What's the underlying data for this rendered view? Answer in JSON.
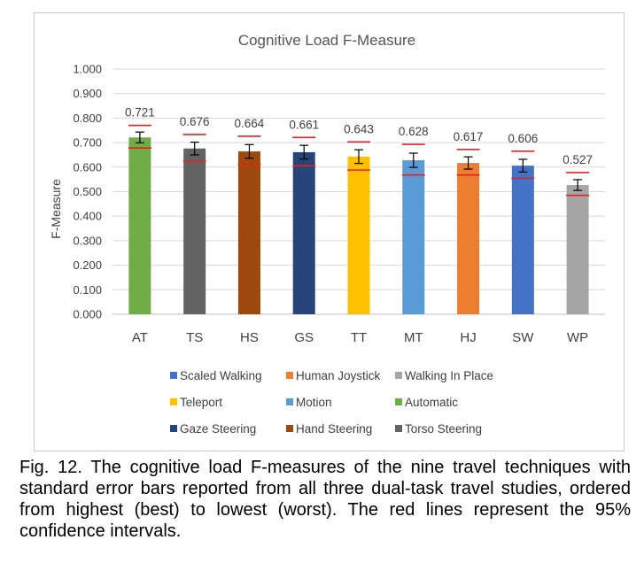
{
  "chart_data": {
    "type": "bar",
    "title": "Cognitive Load F-Measure",
    "ylabel": "F-Measure",
    "xlabel": "",
    "ylim": [
      0,
      1.0
    ],
    "yticks": [
      "0.000",
      "0.100",
      "0.200",
      "0.300",
      "0.400",
      "0.500",
      "0.600",
      "0.700",
      "0.800",
      "0.900",
      "1.000"
    ],
    "grid": true,
    "categories": [
      "AT",
      "TS",
      "HS",
      "GS",
      "TT",
      "MT",
      "HJ",
      "SW",
      "WP"
    ],
    "values": [
      0.721,
      0.676,
      0.664,
      0.661,
      0.643,
      0.628,
      0.617,
      0.606,
      0.527
    ],
    "value_labels": [
      "0.721",
      "0.676",
      "0.664",
      "0.661",
      "0.643",
      "0.628",
      "0.617",
      "0.606",
      "0.527"
    ],
    "error": [
      0.022,
      0.026,
      0.028,
      0.028,
      0.028,
      0.029,
      0.025,
      0.026,
      0.022
    ],
    "ci_low": [
      0.678,
      0.625,
      0.61,
      0.605,
      0.588,
      0.568,
      0.568,
      0.555,
      0.485
    ],
    "ci_high": [
      0.77,
      0.733,
      0.726,
      0.721,
      0.703,
      0.693,
      0.672,
      0.665,
      0.578
    ],
    "ci_color": "#e8211f",
    "colors": [
      "#70ad47",
      "#636363",
      "#9e480e",
      "#264478",
      "#ffc000",
      "#5b9bd5",
      "#ed7d31",
      "#4472c4",
      "#a5a5a5"
    ],
    "legend_position": "bottom",
    "legend": [
      {
        "name": "Scaled Walking",
        "color": "#4472c4"
      },
      {
        "name": "Human Joystick",
        "color": "#ed7d31"
      },
      {
        "name": "Walking In Place",
        "color": "#a5a5a5"
      },
      {
        "name": "Teleport",
        "color": "#ffc000"
      },
      {
        "name": "Motion",
        "color": "#5b9bd5"
      },
      {
        "name": "Automatic",
        "color": "#70ad47"
      },
      {
        "name": "Gaze Steering",
        "color": "#264478"
      },
      {
        "name": "Hand Steering",
        "color": "#9e480e"
      },
      {
        "name": "Torso Steering",
        "color": "#636363"
      }
    ]
  },
  "caption": "Fig. 12. The cognitive load F-measures of the nine travel techniques with standard error bars reported from all three dual-task travel studies, ordered from highest (best) to lowest (worst). The red lines represent the 95% confidence intervals."
}
